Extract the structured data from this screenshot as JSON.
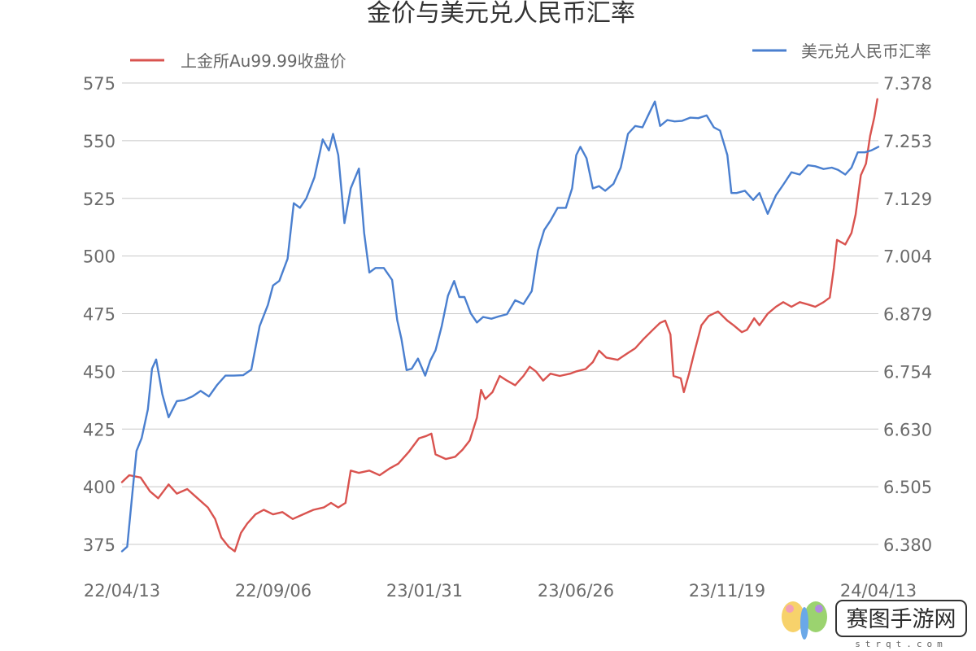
{
  "chart_data": {
    "type": "line",
    "title": "金价与美元兑人民币汇率",
    "legend": {
      "placement": "top",
      "split": "left-and-right"
    },
    "grid": true,
    "x_ticks": [
      "22/04/13",
      "22/09/06",
      "23/01/31",
      "23/06/26",
      "23/11/19",
      "24/04/13"
    ],
    "x_range": [
      "2022-04-13",
      "2024-04-13"
    ],
    "y_left": {
      "range": [
        375,
        575
      ],
      "ticks": [
        "575",
        "550",
        "525",
        "500",
        "475",
        "450",
        "425",
        "400",
        "375"
      ]
    },
    "y_right": {
      "range": [
        6.38,
        7.378
      ],
      "ticks": [
        "7.378",
        "7.253",
        "7.129",
        "7.004",
        "6.879",
        "6.754",
        "6.630",
        "6.505",
        "6.380"
      ]
    },
    "series": [
      {
        "name": "上金所Au99.99收盘价",
        "axis": "left",
        "color": "#d9534f",
        "points": [
          [
            "2022-04-13",
            402
          ],
          [
            "2022-04-20",
            405
          ],
          [
            "2022-05-01",
            404
          ],
          [
            "2022-05-10",
            398
          ],
          [
            "2022-05-18",
            395
          ],
          [
            "2022-05-28",
            401
          ],
          [
            "2022-06-05",
            397
          ],
          [
            "2022-06-15",
            399
          ],
          [
            "2022-06-25",
            395
          ],
          [
            "2022-07-05",
            391
          ],
          [
            "2022-07-12",
            386
          ],
          [
            "2022-07-18",
            378
          ],
          [
            "2022-07-25",
            374
          ],
          [
            "2022-07-31",
            372
          ],
          [
            "2022-08-06",
            380
          ],
          [
            "2022-08-12",
            384
          ],
          [
            "2022-08-20",
            388
          ],
          [
            "2022-08-28",
            390
          ],
          [
            "2022-09-06",
            388
          ],
          [
            "2022-09-15",
            389
          ],
          [
            "2022-09-25",
            386
          ],
          [
            "2022-10-05",
            388
          ],
          [
            "2022-10-15",
            390
          ],
          [
            "2022-10-25",
            391
          ],
          [
            "2022-11-01",
            393
          ],
          [
            "2022-11-08",
            391
          ],
          [
            "2022-11-15",
            393
          ],
          [
            "2022-11-20",
            407
          ],
          [
            "2022-11-28",
            406
          ],
          [
            "2022-12-08",
            407
          ],
          [
            "2022-12-18",
            405
          ],
          [
            "2022-12-28",
            408
          ],
          [
            "2023-01-05",
            410
          ],
          [
            "2023-01-15",
            415
          ],
          [
            "2023-01-25",
            421
          ],
          [
            "2023-02-01",
            422
          ],
          [
            "2023-02-06",
            423
          ],
          [
            "2023-02-10",
            414
          ],
          [
            "2023-02-20",
            412
          ],
          [
            "2023-03-01",
            413
          ],
          [
            "2023-03-08",
            416
          ],
          [
            "2023-03-15",
            420
          ],
          [
            "2023-03-22",
            430
          ],
          [
            "2023-03-26",
            442
          ],
          [
            "2023-03-30",
            438
          ],
          [
            "2023-04-06",
            441
          ],
          [
            "2023-04-13",
            448
          ],
          [
            "2023-04-20",
            446
          ],
          [
            "2023-04-28",
            444
          ],
          [
            "2023-05-06",
            448
          ],
          [
            "2023-05-12",
            452
          ],
          [
            "2023-05-18",
            450
          ],
          [
            "2023-05-25",
            446
          ],
          [
            "2023-06-01",
            449
          ],
          [
            "2023-06-10",
            448
          ],
          [
            "2023-06-20",
            449
          ],
          [
            "2023-06-26",
            450
          ],
          [
            "2023-07-05",
            451
          ],
          [
            "2023-07-12",
            454
          ],
          [
            "2023-07-18",
            459
          ],
          [
            "2023-07-25",
            456
          ],
          [
            "2023-08-05",
            455
          ],
          [
            "2023-08-15",
            458
          ],
          [
            "2023-08-22",
            460
          ],
          [
            "2023-08-30",
            464
          ],
          [
            "2023-09-08",
            468
          ],
          [
            "2023-09-15",
            471
          ],
          [
            "2023-09-20",
            472
          ],
          [
            "2023-09-25",
            466
          ],
          [
            "2023-09-28",
            448
          ],
          [
            "2023-10-05",
            447
          ],
          [
            "2023-10-08",
            441
          ],
          [
            "2023-10-13",
            449
          ],
          [
            "2023-10-18",
            458
          ],
          [
            "2023-10-25",
            470
          ],
          [
            "2023-11-01",
            474
          ],
          [
            "2023-11-10",
            476
          ],
          [
            "2023-11-19",
            472
          ],
          [
            "2023-11-25",
            470
          ],
          [
            "2023-12-03",
            467
          ],
          [
            "2023-12-08",
            468
          ],
          [
            "2023-12-15",
            473
          ],
          [
            "2023-12-20",
            470
          ],
          [
            "2023-12-28",
            475
          ],
          [
            "2024-01-05",
            478
          ],
          [
            "2024-01-12",
            480
          ],
          [
            "2024-01-20",
            478
          ],
          [
            "2024-01-28",
            480
          ],
          [
            "2024-02-05",
            479
          ],
          [
            "2024-02-12",
            478
          ],
          [
            "2024-02-20",
            480
          ],
          [
            "2024-02-26",
            482
          ],
          [
            "2024-03-01",
            495
          ],
          [
            "2024-03-04",
            507
          ],
          [
            "2024-03-12",
            505
          ],
          [
            "2024-03-18",
            510
          ],
          [
            "2024-03-22",
            518
          ],
          [
            "2024-03-27",
            535
          ],
          [
            "2024-04-01",
            540
          ],
          [
            "2024-04-05",
            552
          ],
          [
            "2024-04-09",
            560
          ],
          [
            "2024-04-12",
            568
          ]
        ]
      },
      {
        "name": "美元兑人民币汇率",
        "axis": "right",
        "color": "#4a7fcf",
        "points": [
          [
            "2022-04-13",
            6.365
          ],
          [
            "2022-04-18",
            6.375
          ],
          [
            "2022-04-22",
            6.468
          ],
          [
            "2022-04-27",
            6.582
          ],
          [
            "2022-05-02",
            6.61
          ],
          [
            "2022-05-08",
            6.672
          ],
          [
            "2022-05-12",
            6.76
          ],
          [
            "2022-05-16",
            6.78
          ],
          [
            "2022-05-22",
            6.705
          ],
          [
            "2022-05-28",
            6.655
          ],
          [
            "2022-06-05",
            6.69
          ],
          [
            "2022-06-12",
            6.692
          ],
          [
            "2022-06-20",
            6.7
          ],
          [
            "2022-06-28",
            6.712
          ],
          [
            "2022-07-06",
            6.7
          ],
          [
            "2022-07-14",
            6.725
          ],
          [
            "2022-07-22",
            6.745
          ],
          [
            "2022-07-30",
            6.745
          ],
          [
            "2022-08-08",
            6.746
          ],
          [
            "2022-08-16",
            6.758
          ],
          [
            "2022-08-24",
            6.852
          ],
          [
            "2022-09-01",
            6.898
          ],
          [
            "2022-09-06",
            6.94
          ],
          [
            "2022-09-12",
            6.95
          ],
          [
            "2022-09-20",
            6.998
          ],
          [
            "2022-09-26",
            7.118
          ],
          [
            "2022-10-02",
            7.108
          ],
          [
            "2022-10-08",
            7.128
          ],
          [
            "2022-10-16",
            7.174
          ],
          [
            "2022-10-24",
            7.256
          ],
          [
            "2022-10-30",
            7.232
          ],
          [
            "2022-11-03",
            7.268
          ],
          [
            "2022-11-08",
            7.222
          ],
          [
            "2022-11-14",
            7.075
          ],
          [
            "2022-11-20",
            7.15
          ],
          [
            "2022-11-28",
            7.193
          ],
          [
            "2022-12-03",
            7.054
          ],
          [
            "2022-12-08",
            6.968
          ],
          [
            "2022-12-14",
            6.978
          ],
          [
            "2022-12-22",
            6.978
          ],
          [
            "2022-12-30",
            6.952
          ],
          [
            "2023-01-04",
            6.865
          ],
          [
            "2023-01-08",
            6.825
          ],
          [
            "2023-01-13",
            6.757
          ],
          [
            "2023-01-18",
            6.76
          ],
          [
            "2023-01-24",
            6.782
          ],
          [
            "2023-01-31",
            6.745
          ],
          [
            "2023-02-05",
            6.778
          ],
          [
            "2023-02-10",
            6.8
          ],
          [
            "2023-02-16",
            6.852
          ],
          [
            "2023-02-22",
            6.918
          ],
          [
            "2023-02-28",
            6.95
          ],
          [
            "2023-03-05",
            6.915
          ],
          [
            "2023-03-10",
            6.915
          ],
          [
            "2023-03-16",
            6.88
          ],
          [
            "2023-03-22",
            6.86
          ],
          [
            "2023-03-28",
            6.872
          ],
          [
            "2023-04-05",
            6.868
          ],
          [
            "2023-04-12",
            6.873
          ],
          [
            "2023-04-20",
            6.878
          ],
          [
            "2023-04-28",
            6.908
          ],
          [
            "2023-05-06",
            6.9
          ],
          [
            "2023-05-14",
            6.928
          ],
          [
            "2023-05-20",
            7.015
          ],
          [
            "2023-05-26",
            7.06
          ],
          [
            "2023-06-01",
            7.08
          ],
          [
            "2023-06-08",
            7.108
          ],
          [
            "2023-06-16",
            7.108
          ],
          [
            "2023-06-22",
            7.15
          ],
          [
            "2023-06-26",
            7.222
          ],
          [
            "2023-06-30",
            7.24
          ],
          [
            "2023-07-06",
            7.215
          ],
          [
            "2023-07-12",
            7.15
          ],
          [
            "2023-07-18",
            7.155
          ],
          [
            "2023-07-24",
            7.145
          ],
          [
            "2023-08-01",
            7.16
          ],
          [
            "2023-08-08",
            7.195
          ],
          [
            "2023-08-15",
            7.268
          ],
          [
            "2023-08-22",
            7.285
          ],
          [
            "2023-08-29",
            7.282
          ],
          [
            "2023-09-05",
            7.315
          ],
          [
            "2023-09-10",
            7.338
          ],
          [
            "2023-09-15",
            7.285
          ],
          [
            "2023-09-22",
            7.298
          ],
          [
            "2023-09-29",
            7.295
          ],
          [
            "2023-10-06",
            7.296
          ],
          [
            "2023-10-14",
            7.303
          ],
          [
            "2023-10-22",
            7.302
          ],
          [
            "2023-10-30",
            7.308
          ],
          [
            "2023-11-06",
            7.282
          ],
          [
            "2023-11-12",
            7.275
          ],
          [
            "2023-11-19",
            7.222
          ],
          [
            "2023-11-23",
            7.14
          ],
          [
            "2023-11-28",
            7.14
          ],
          [
            "2023-12-06",
            7.145
          ],
          [
            "2023-12-14",
            7.125
          ],
          [
            "2023-12-20",
            7.14
          ],
          [
            "2023-12-28",
            7.095
          ],
          [
            "2024-01-05",
            7.135
          ],
          [
            "2024-01-12",
            7.158
          ],
          [
            "2024-01-20",
            7.185
          ],
          [
            "2024-01-28",
            7.18
          ],
          [
            "2024-02-05",
            7.2
          ],
          [
            "2024-02-12",
            7.198
          ],
          [
            "2024-02-20",
            7.192
          ],
          [
            "2024-02-28",
            7.195
          ],
          [
            "2024-03-05",
            7.19
          ],
          [
            "2024-03-12",
            7.18
          ],
          [
            "2024-03-18",
            7.195
          ],
          [
            "2024-03-24",
            7.228
          ],
          [
            "2024-03-31",
            7.228
          ],
          [
            "2024-04-06",
            7.232
          ],
          [
            "2024-04-13",
            7.24
          ]
        ]
      }
    ]
  },
  "watermark": {
    "text": "赛图手游网",
    "sub": "strqt.com",
    "logo_colors": [
      "#f2a0b6",
      "#f7d26b",
      "#8fd16b",
      "#6aa8e8",
      "#b08be0"
    ]
  }
}
